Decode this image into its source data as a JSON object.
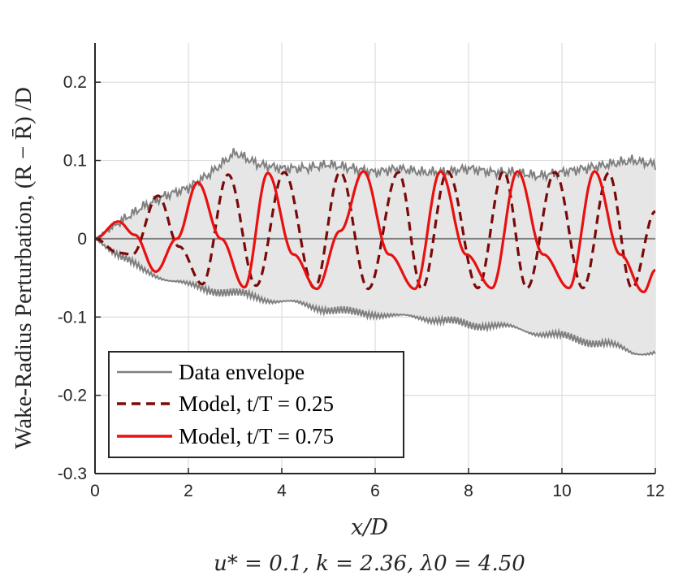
{
  "chart_data": {
    "type": "line",
    "title": "",
    "xlabel": "x/D",
    "ylabel": "Wake-Radius Perturbation, (R − R̄) /D",
    "caption": "u* = 0.1, k = 2.36, λ0 = 4.50",
    "xlim": [
      0,
      12
    ],
    "ylim": [
      -0.3,
      0.25
    ],
    "x_ticks": [
      0,
      2,
      4,
      6,
      8,
      10,
      12
    ],
    "x_tick_labels": [
      "0",
      "2",
      "4",
      "6",
      "8",
      "10",
      "12"
    ],
    "y_ticks": [
      -0.3,
      -0.2,
      -0.1,
      0,
      0.1,
      0.2
    ],
    "y_tick_labels": [
      "-0.3",
      "-0.2",
      "-0.1",
      "0",
      "0.1",
      "0.2"
    ],
    "grid": true,
    "legend_position": "bottom-left",
    "parameters": {
      "u_star": 0.1,
      "k": 2.36,
      "lambda0": 4.5
    },
    "envelope": {
      "name": "Data envelope",
      "x": [
        0,
        0.5,
        1,
        1.5,
        2,
        2.5,
        3,
        3.5,
        4,
        4.5,
        5,
        5.5,
        6,
        6.5,
        7,
        7.5,
        8,
        8.5,
        9,
        9.5,
        10,
        10.5,
        11,
        11.5,
        12
      ],
      "upper": [
        0,
        0.02,
        0.04,
        0.055,
        0.065,
        0.085,
        0.11,
        0.095,
        0.09,
        0.09,
        0.095,
        0.09,
        0.085,
        0.09,
        0.085,
        0.085,
        0.09,
        0.085,
        0.085,
        0.08,
        0.085,
        0.09,
        0.095,
        0.1,
        0.095
      ],
      "lower": [
        0,
        -0.02,
        -0.04,
        -0.05,
        -0.06,
        -0.065,
        -0.07,
        -0.075,
        -0.08,
        -0.085,
        -0.09,
        -0.095,
        -0.095,
        -0.1,
        -0.1,
        -0.105,
        -0.11,
        -0.11,
        -0.115,
        -0.12,
        -0.125,
        -0.13,
        -0.135,
        -0.145,
        -0.145
      ]
    },
    "series": [
      {
        "name": "Model, t/T = 0.25",
        "style": "dashed",
        "color": "#7a0a0a",
        "x": [
          0,
          0.5,
          0.8,
          1.35,
          1.8,
          2.3,
          2.85,
          3.45,
          4.05,
          4.7,
          5.25,
          5.85,
          6.5,
          7.0,
          7.55,
          8.2,
          8.75,
          9.25,
          9.85,
          10.45,
          11.0,
          11.5,
          12.0
        ],
        "values": [
          0,
          -0.018,
          -0.02,
          0.055,
          -0.01,
          -0.058,
          0.082,
          -0.06,
          0.085,
          -0.063,
          0.085,
          -0.064,
          0.085,
          -0.064,
          0.086,
          -0.063,
          0.086,
          -0.063,
          0.085,
          -0.063,
          0.084,
          -0.063,
          0.035
        ]
      },
      {
        "name": "Model, t/T = 0.75",
        "style": "solid",
        "color": "#e81010",
        "x": [
          0,
          0.5,
          0.85,
          1.3,
          1.75,
          2.2,
          2.7,
          3.2,
          3.7,
          4.25,
          4.75,
          5.25,
          5.75,
          6.3,
          6.85,
          7.4,
          7.95,
          8.5,
          9.05,
          9.6,
          10.15,
          10.7,
          11.25,
          11.75,
          12.0
        ],
        "values": [
          0,
          0.022,
          0.005,
          -0.042,
          0.0,
          0.072,
          0.0,
          -0.062,
          0.084,
          -0.02,
          -0.064,
          0.01,
          0.086,
          -0.02,
          -0.064,
          0.086,
          -0.02,
          -0.063,
          0.086,
          -0.02,
          -0.063,
          0.086,
          -0.02,
          -0.068,
          -0.04
        ]
      }
    ],
    "legend": [
      {
        "label": "Data envelope",
        "color": "#808080",
        "style": "solid"
      },
      {
        "label": "Model, t/T = 0.25",
        "color": "#7a0a0a",
        "style": "dashed"
      },
      {
        "label": "Model, t/T = 0.75",
        "color": "#e81010",
        "style": "solid"
      }
    ]
  }
}
